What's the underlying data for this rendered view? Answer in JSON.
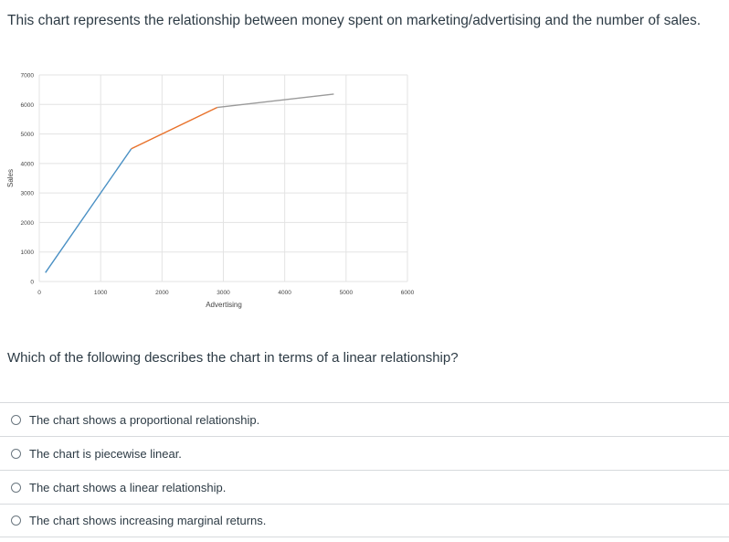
{
  "intro_text": "This chart represents the relationship between money spent on marketing/advertising and the number of sales.",
  "question_text": "Which of the following describes the chart in terms of a linear relationship?",
  "options": [
    {
      "label": "The chart shows a proportional relationship."
    },
    {
      "label": "The chart is piecewise linear."
    },
    {
      "label": "The chart shows a linear relationship."
    },
    {
      "label": "The chart shows increasing marginal returns."
    }
  ],
  "chart_data": {
    "type": "line",
    "xlabel": "Advertising",
    "ylabel": "Sales",
    "xlim": [
      0,
      6000
    ],
    "ylim": [
      0,
      7000
    ],
    "x_ticks": [
      0,
      1000,
      2000,
      3000,
      4000,
      5000,
      6000
    ],
    "y_ticks": [
      0,
      1000,
      2000,
      3000,
      4000,
      5000,
      6000,
      7000
    ],
    "grid": true,
    "series": [
      {
        "color": "#4a90c4",
        "x": [
          100,
          1500
        ],
        "y": [
          300,
          4500
        ]
      },
      {
        "color": "#e8712a",
        "x": [
          1500,
          2900
        ],
        "y": [
          4500,
          5900
        ]
      },
      {
        "color": "#9a9a9a",
        "x": [
          2900,
          4800
        ],
        "y": [
          5900,
          6350
        ]
      }
    ]
  }
}
